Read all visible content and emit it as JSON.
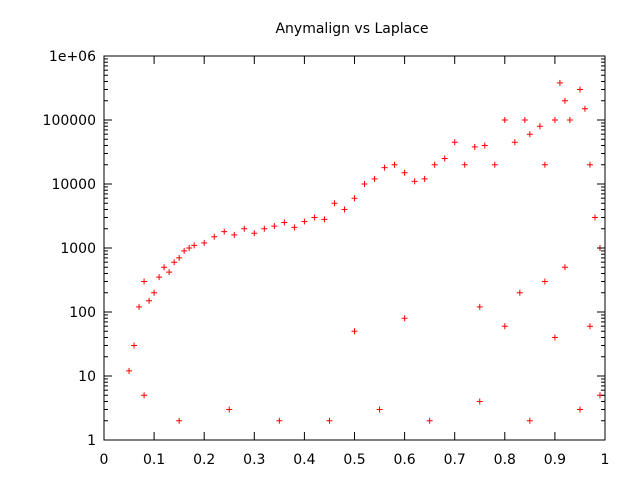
{
  "chart_data": {
    "type": "scatter",
    "title": "Anymalign vs Laplace",
    "xlabel": "",
    "ylabel": "",
    "xlim": [
      0,
      1
    ],
    "ylim": [
      1,
      1000000
    ],
    "y_scale": "log",
    "grid": false,
    "legend": "none",
    "marker": "+",
    "x_ticks": [
      0,
      0.1,
      0.2,
      0.3,
      0.4,
      0.5,
      0.6,
      0.7,
      0.8,
      0.9,
      1
    ],
    "x_tick_labels": [
      "0",
      "0.1",
      "0.2",
      "0.3",
      "0.4",
      "0.5",
      "0.6",
      "0.7",
      "0.8",
      "0.9",
      "1"
    ],
    "y_ticks": [
      1,
      10,
      100,
      1000,
      10000,
      100000,
      1000000
    ],
    "y_tick_labels": [
      "1",
      "10",
      "100",
      "1000",
      "10000",
      "100000",
      "1e+06"
    ],
    "series": [
      {
        "color": "#ff0000",
        "points": [
          [
            0.05,
            12
          ],
          [
            0.06,
            30
          ],
          [
            0.07,
            120
          ],
          [
            0.08,
            300
          ],
          [
            0.09,
            150
          ],
          [
            0.1,
            200
          ],
          [
            0.11,
            350
          ],
          [
            0.12,
            500
          ],
          [
            0.13,
            420
          ],
          [
            0.14,
            600
          ],
          [
            0.15,
            700
          ],
          [
            0.16,
            900
          ],
          [
            0.17,
            1000
          ],
          [
            0.18,
            1100
          ],
          [
            0.2,
            1200
          ],
          [
            0.22,
            1500
          ],
          [
            0.24,
            1800
          ],
          [
            0.26,
            1600
          ],
          [
            0.28,
            2000
          ],
          [
            0.3,
            1700
          ],
          [
            0.32,
            2000
          ],
          [
            0.34,
            2200
          ],
          [
            0.36,
            2500
          ],
          [
            0.38,
            2100
          ],
          [
            0.4,
            2600
          ],
          [
            0.42,
            3000
          ],
          [
            0.44,
            2800
          ],
          [
            0.46,
            5000
          ],
          [
            0.48,
            4000
          ],
          [
            0.5,
            6000
          ],
          [
            0.52,
            10000
          ],
          [
            0.54,
            12000
          ],
          [
            0.56,
            18000
          ],
          [
            0.58,
            20000
          ],
          [
            0.6,
            15000
          ],
          [
            0.62,
            11000
          ],
          [
            0.64,
            12000
          ],
          [
            0.66,
            20000
          ],
          [
            0.68,
            25000
          ],
          [
            0.7,
            45000
          ],
          [
            0.72,
            20000
          ],
          [
            0.74,
            38000
          ],
          [
            0.76,
            40000
          ],
          [
            0.78,
            20000
          ],
          [
            0.8,
            100000
          ],
          [
            0.82,
            45000
          ],
          [
            0.84,
            100000
          ],
          [
            0.85,
            60000
          ],
          [
            0.87,
            80000
          ],
          [
            0.88,
            20000
          ],
          [
            0.9,
            100000
          ],
          [
            0.91,
            380000
          ],
          [
            0.92,
            200000
          ],
          [
            0.93,
            100000
          ],
          [
            0.95,
            300000
          ],
          [
            0.96,
            150000
          ],
          [
            0.97,
            20000
          ],
          [
            0.98,
            3000
          ],
          [
            0.99,
            1000
          ],
          [
            0.08,
            5
          ],
          [
            0.15,
            2
          ],
          [
            0.25,
            3
          ],
          [
            0.35,
            2
          ],
          [
            0.45,
            2
          ],
          [
            0.55,
            3
          ],
          [
            0.65,
            2
          ],
          [
            0.75,
            4
          ],
          [
            0.85,
            2
          ],
          [
            0.95,
            3
          ],
          [
            0.5,
            50
          ],
          [
            0.6,
            80
          ],
          [
            0.75,
            120
          ],
          [
            0.8,
            60
          ],
          [
            0.83,
            200
          ],
          [
            0.88,
            300
          ],
          [
            0.9,
            40
          ],
          [
            0.92,
            500
          ],
          [
            0.97,
            60
          ],
          [
            0.99,
            5
          ]
        ]
      }
    ]
  }
}
